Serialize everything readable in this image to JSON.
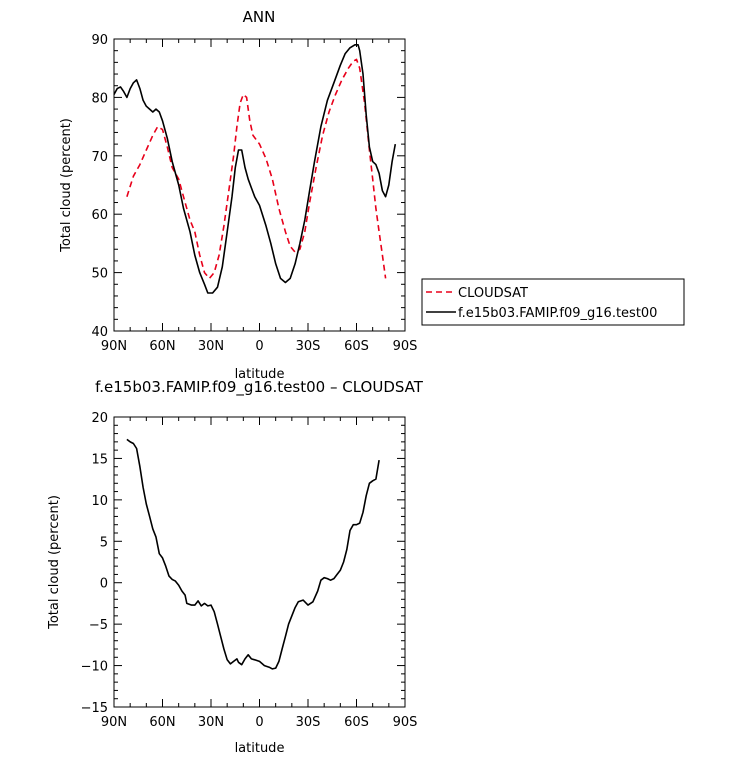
{
  "chart_data": [
    {
      "type": "line",
      "title": "ANN",
      "xlabel": "latitude",
      "ylabel": "Total cloud (percent)",
      "xlim": [
        90,
        -90
      ],
      "ylim": [
        40,
        90
      ],
      "xticks": [
        90,
        60,
        30,
        0,
        -30,
        -60,
        -90
      ],
      "xtick_labels": [
        "90N",
        "60N",
        "30N",
        "0",
        "30S",
        "60S",
        "90S"
      ],
      "yticks": [
        40,
        50,
        60,
        70,
        80,
        90
      ],
      "ytick_labels": [
        "40",
        "50",
        "60",
        "70",
        "80",
        "90"
      ],
      "grid": false,
      "legend_placement": "outside right",
      "series": [
        {
          "name": "CLOUDSAT",
          "color": "#e8001a",
          "style": "dashed",
          "points": [
            [
              82,
              63
            ],
            [
              78,
              66.5
            ],
            [
              74,
              68.5
            ],
            [
              70,
              71
            ],
            [
              66,
              73.5
            ],
            [
              63,
              75
            ],
            [
              60,
              74.5
            ],
            [
              57,
              71.5
            ],
            [
              54,
              68
            ],
            [
              50,
              66
            ],
            [
              47,
              63
            ],
            [
              43,
              59
            ],
            [
              40,
              57
            ],
            [
              37,
              53
            ],
            [
              34,
              50
            ],
            [
              31,
              49
            ],
            [
              28,
              50
            ],
            [
              25,
              53
            ],
            [
              22,
              58
            ],
            [
              19,
              64
            ],
            [
              16,
              70
            ],
            [
              14,
              75
            ],
            [
              12,
              79
            ],
            [
              10,
              80.5
            ],
            [
              8,
              80
            ],
            [
              6,
              76
            ],
            [
              4,
              73.5
            ],
            [
              0,
              72
            ],
            [
              -4,
              69.5
            ],
            [
              -8,
              66
            ],
            [
              -12,
              61
            ],
            [
              -16,
              57
            ],
            [
              -19,
              54.5
            ],
            [
              -22,
              53.5
            ],
            [
              -25,
              54
            ],
            [
              -28,
              57
            ],
            [
              -31,
              62
            ],
            [
              -35,
              68
            ],
            [
              -39,
              73.5
            ],
            [
              -43,
              77.5
            ],
            [
              -47,
              80.5
            ],
            [
              -51,
              83
            ],
            [
              -55,
              85
            ],
            [
              -58,
              86.2
            ],
            [
              -60,
              86.5
            ],
            [
              -62,
              85
            ],
            [
              -65,
              79
            ],
            [
              -68,
              71
            ],
            [
              -70,
              66
            ],
            [
              -72,
              61
            ],
            [
              -74,
              57
            ],
            [
              -76,
              53
            ],
            [
              -78,
              49
            ]
          ]
        },
        {
          "name": "f.e15b03.FAMIP.f09_g16.test00",
          "color": "#000000",
          "style": "solid",
          "points": [
            [
              90,
              80.5
            ],
            [
              88,
              81.5
            ],
            [
              86,
              81.8
            ],
            [
              84,
              81
            ],
            [
              82,
              80
            ],
            [
              80,
              81.5
            ],
            [
              78,
              82.5
            ],
            [
              76,
              83
            ],
            [
              74,
              81.5
            ],
            [
              72,
              79.5
            ],
            [
              70,
              78.5
            ],
            [
              68,
              78
            ],
            [
              66,
              77.5
            ],
            [
              64,
              78
            ],
            [
              62,
              77.5
            ],
            [
              60,
              76
            ],
            [
              57,
              73
            ],
            [
              54,
              69
            ],
            [
              50,
              65
            ],
            [
              47,
              61
            ],
            [
              43,
              57
            ],
            [
              40,
              53
            ],
            [
              37,
              50
            ],
            [
              34,
              48
            ],
            [
              32,
              46.5
            ],
            [
              29,
              46.5
            ],
            [
              26,
              47.5
            ],
            [
              23,
              51
            ],
            [
              20,
              57
            ],
            [
              17,
              63
            ],
            [
              15,
              68
            ],
            [
              13,
              71
            ],
            [
              11,
              71
            ],
            [
              9,
              68
            ],
            [
              7,
              66
            ],
            [
              5,
              64.5
            ],
            [
              3,
              63
            ],
            [
              0,
              61.5
            ],
            [
              -4,
              58
            ],
            [
              -7,
              55
            ],
            [
              -10,
              51.5
            ],
            [
              -13,
              49
            ],
            [
              -16,
              48.3
            ],
            [
              -19,
              49
            ],
            [
              -22,
              51.5
            ],
            [
              -25,
              55
            ],
            [
              -28,
              59
            ],
            [
              -31,
              64
            ],
            [
              -34,
              69
            ],
            [
              -38,
              75
            ],
            [
              -42,
              79.5
            ],
            [
              -46,
              82.5
            ],
            [
              -50,
              85.5
            ],
            [
              -53,
              87.5
            ],
            [
              -56,
              88.5
            ],
            [
              -59,
              89
            ],
            [
              -61,
              89
            ],
            [
              -62,
              88
            ],
            [
              -64,
              84
            ],
            [
              -66,
              77
            ],
            [
              -68,
              71.5
            ],
            [
              -70,
              69
            ],
            [
              -72,
              68.5
            ],
            [
              -74,
              67
            ],
            [
              -76,
              64
            ],
            [
              -78,
              63
            ],
            [
              -80,
              65
            ],
            [
              -82,
              69
            ],
            [
              -84,
              72
            ]
          ]
        }
      ]
    },
    {
      "type": "line",
      "title": "f.e15b03.FAMIP.f09_g16.test00 – CLOUDSAT",
      "xlabel": "latitude",
      "ylabel": "Total cloud (percent)",
      "xlim": [
        90,
        -90
      ],
      "ylim": [
        -15,
        20
      ],
      "xticks": [
        90,
        60,
        30,
        0,
        -30,
        -60,
        -90
      ],
      "xtick_labels": [
        "90N",
        "60N",
        "30N",
        "0",
        "30S",
        "60S",
        "90S"
      ],
      "yticks": [
        -15,
        -10,
        -5,
        0,
        5,
        10,
        15,
        20
      ],
      "ytick_labels": [
        "−15",
        "−10",
        "−5",
        "0",
        "5",
        "10",
        "15",
        "20"
      ],
      "grid": false,
      "series": [
        {
          "color": "#000000",
          "style": "solid",
          "points": [
            [
              82,
              17.3
            ],
            [
              80,
              17
            ],
            [
              78,
              16.8
            ],
            [
              76,
              16.2
            ],
            [
              74,
              14
            ],
            [
              72,
              11.5
            ],
            [
              70,
              9.5
            ],
            [
              68,
              8
            ],
            [
              66,
              6.5
            ],
            [
              64,
              5.5
            ],
            [
              62,
              3.5
            ],
            [
              60,
              3
            ],
            [
              58,
              2
            ],
            [
              56,
              0.8
            ],
            [
              54,
              0.4
            ],
            [
              52,
              0.2
            ],
            [
              50,
              -0.3
            ],
            [
              48,
              -1
            ],
            [
              46,
              -1.5
            ],
            [
              45,
              -2.5
            ],
            [
              42,
              -2.7
            ],
            [
              40,
              -2.7
            ],
            [
              38,
              -2.2
            ],
            [
              36,
              -2.8
            ],
            [
              34,
              -2.5
            ],
            [
              32,
              -2.8
            ],
            [
              30,
              -2.7
            ],
            [
              28,
              -3.5
            ],
            [
              26,
              -5
            ],
            [
              24,
              -6.5
            ],
            [
              22,
              -8
            ],
            [
              20,
              -9.3
            ],
            [
              18,
              -9.8
            ],
            [
              16,
              -9.5
            ],
            [
              14,
              -9.2
            ],
            [
              13,
              -9.6
            ],
            [
              11,
              -9.9
            ],
            [
              9,
              -9.2
            ],
            [
              7,
              -8.7
            ],
            [
              5,
              -9.2
            ],
            [
              3,
              -9.3
            ],
            [
              0,
              -9.5
            ],
            [
              -3,
              -10
            ],
            [
              -6,
              -10.2
            ],
            [
              -8,
              -10.4
            ],
            [
              -10,
              -10.3
            ],
            [
              -12,
              -9.5
            ],
            [
              -14,
              -8
            ],
            [
              -16,
              -6.5
            ],
            [
              -18,
              -5
            ],
            [
              -20,
              -4
            ],
            [
              -22,
              -3
            ],
            [
              -24,
              -2.3
            ],
            [
              -27,
              -2.1
            ],
            [
              -30,
              -2.7
            ],
            [
              -33,
              -2.3
            ],
            [
              -36,
              -1
            ],
            [
              -38,
              0.3
            ],
            [
              -40,
              0.6
            ],
            [
              -42,
              0.5
            ],
            [
              -44,
              0.3
            ],
            [
              -46,
              0.5
            ],
            [
              -48,
              1
            ],
            [
              -50,
              1.5
            ],
            [
              -52,
              2.5
            ],
            [
              -54,
              4
            ],
            [
              -56,
              6.3
            ],
            [
              -58,
              7
            ],
            [
              -60,
              7
            ],
            [
              -62,
              7.2
            ],
            [
              -64,
              8.5
            ],
            [
              -66,
              10.5
            ],
            [
              -68,
              12
            ],
            [
              -70,
              12.3
            ],
            [
              -72,
              12.5
            ],
            [
              -74,
              14.8
            ]
          ]
        }
      ]
    }
  ],
  "legend_entries": [
    {
      "label": "CLOUDSAT",
      "color": "#e8001a",
      "style": "dashed"
    },
    {
      "label": "f.e15b03.FAMIP.f09_g16.test00",
      "color": "#000000",
      "style": "solid"
    }
  ]
}
